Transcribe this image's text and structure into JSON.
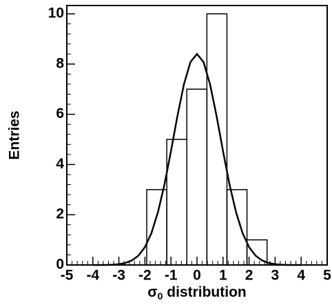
{
  "chart_data": {
    "type": "histogram",
    "ylabel": "Entries",
    "xlabel": [
      "σ",
      "0",
      "distribution"
    ],
    "bins": [
      -1.93,
      -1.16,
      -0.39,
      0.38,
      1.15,
      1.92,
      2.69
    ],
    "values": [
      3,
      5,
      7,
      10,
      3,
      1
    ],
    "fit": {
      "x": [
        -4,
        -3.75,
        -3.5,
        -3.25,
        -3,
        -2.75,
        -2.5,
        -2.25,
        -2,
        -1.75,
        -1.5,
        -1.25,
        -1,
        -0.75,
        -0.5,
        -0.25,
        0,
        0.25,
        0.5,
        0.75,
        1,
        1.25,
        1.5,
        1.75,
        2,
        2.25,
        2.5,
        2.75,
        3,
        3.25,
        3.5,
        3.75,
        4
      ],
      "values": [
        0,
        0,
        0,
        0.01,
        0.03,
        0.08,
        0.18,
        0.37,
        0.71,
        1.27,
        2.1,
        3.2,
        4.53,
        5.94,
        7.2,
        8.08,
        8.4,
        8.08,
        7.2,
        5.94,
        4.53,
        3.2,
        2.1,
        1.27,
        0.71,
        0.37,
        0.18,
        0.08,
        0.03,
        0.01,
        0,
        0,
        0
      ]
    },
    "color": "#000000",
    "xlim": [
      -5,
      5
    ],
    "xticks": [
      -5,
      -4,
      -3,
      -2,
      -1,
      0,
      1,
      2,
      3,
      4,
      5
    ],
    "ylim": [
      0,
      10.33
    ],
    "yticks": [
      0,
      2,
      4,
      6,
      8,
      10
    ]
  }
}
